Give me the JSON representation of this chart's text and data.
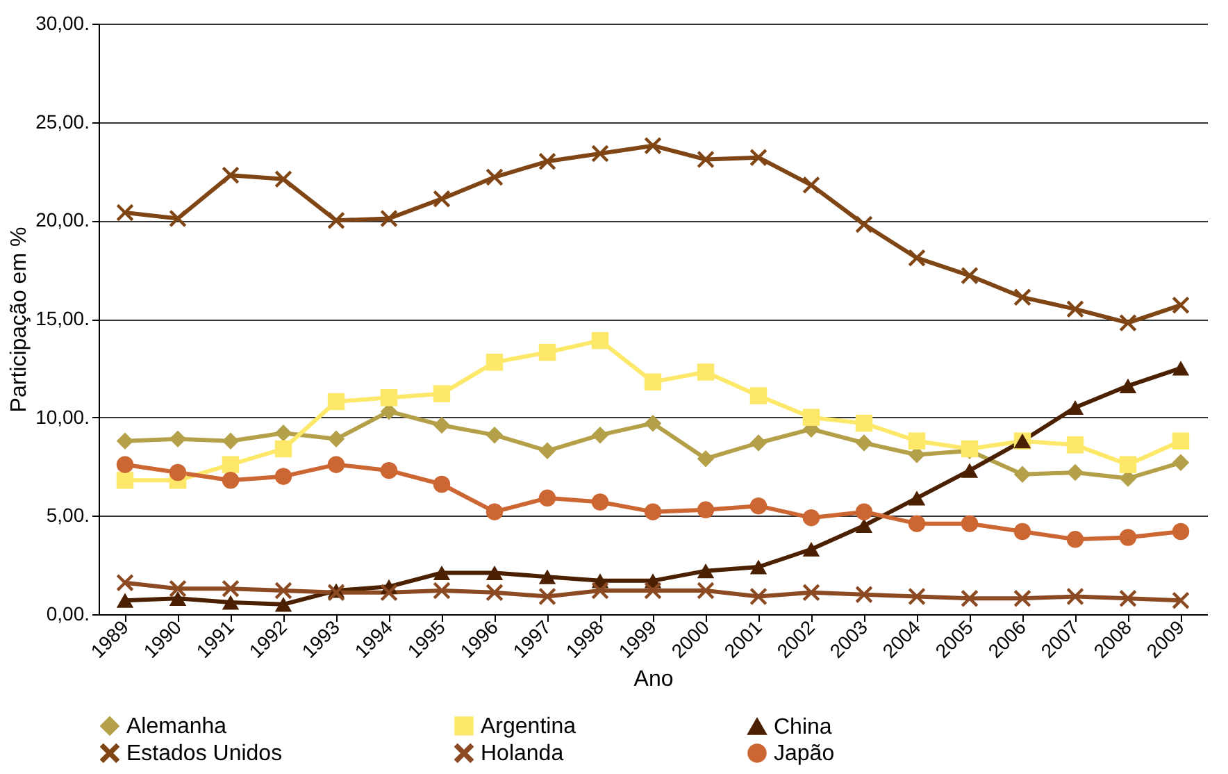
{
  "chart_data": {
    "type": "line",
    "xlabel": "Ano",
    "ylabel": "Participação em %",
    "categories": [
      "1989",
      "1990",
      "1991",
      "1992",
      "1993",
      "1994",
      "1995",
      "1996",
      "1997",
      "1998",
      "1999",
      "2000",
      "2001",
      "2002",
      "2003",
      "2004",
      "2005",
      "2006",
      "2007",
      "2008",
      "2009"
    ],
    "ylim": [
      0,
      30
    ],
    "yticks": [
      {
        "value": 0,
        "label": "0,00."
      },
      {
        "value": 5,
        "label": "5,00."
      },
      {
        "value": 10,
        "label": "10,00."
      },
      {
        "value": 15,
        "label": "15,00."
      },
      {
        "value": 20,
        "label": "20,00."
      },
      {
        "value": 25,
        "label": "25,00."
      },
      {
        "value": 30,
        "label": "30,00."
      }
    ],
    "grid": "y",
    "legend": "bottom",
    "line_style": "solid",
    "series": [
      {
        "name": "Alemanha",
        "color": "#b5a04a",
        "marker": "diamond",
        "values": [
          8.8,
          8.9,
          8.8,
          9.2,
          8.9,
          10.3,
          9.6,
          9.1,
          8.3,
          9.1,
          9.7,
          7.9,
          8.7,
          9.4,
          8.7,
          8.1,
          8.3,
          7.1,
          7.2,
          6.9,
          7.7
        ]
      },
      {
        "name": "Argentina",
        "color": "#fde86a",
        "marker": "square",
        "values": [
          6.8,
          6.8,
          7.6,
          8.4,
          10.8,
          11.0,
          11.2,
          12.8,
          13.3,
          13.9,
          11.8,
          12.3,
          11.1,
          10.0,
          9.7,
          8.8,
          8.4,
          8.8,
          8.6,
          7.6,
          8.8
        ]
      },
      {
        "name": "China",
        "color": "#4a2000",
        "marker": "triangle",
        "values": [
          0.7,
          0.8,
          0.6,
          0.5,
          1.2,
          1.4,
          2.1,
          2.1,
          1.9,
          1.7,
          1.7,
          2.2,
          2.4,
          3.3,
          4.5,
          5.9,
          7.3,
          8.8,
          10.5,
          11.6,
          12.5
        ]
      },
      {
        "name": "Estados Unidos",
        "color": "#7f4515",
        "marker": "cross",
        "values": [
          20.4,
          20.1,
          22.3,
          22.1,
          20.0,
          20.1,
          21.1,
          22.2,
          23.0,
          23.4,
          23.8,
          23.1,
          23.2,
          21.8,
          19.8,
          18.1,
          17.2,
          16.1,
          15.5,
          14.8,
          15.7
        ]
      },
      {
        "name": "Holanda",
        "color": "#8b4a22",
        "marker": "cross",
        "values": [
          1.6,
          1.3,
          1.3,
          1.2,
          1.1,
          1.1,
          1.2,
          1.1,
          0.9,
          1.2,
          1.2,
          1.2,
          0.9,
          1.1,
          1.0,
          0.9,
          0.8,
          0.8,
          0.9,
          0.8,
          0.7
        ]
      },
      {
        "name": "Japão",
        "color": "#cc6633",
        "marker": "circle",
        "values": [
          7.6,
          7.2,
          6.8,
          7.0,
          7.6,
          7.3,
          6.6,
          5.2,
          5.9,
          5.7,
          5.2,
          5.3,
          5.5,
          4.9,
          5.2,
          4.6,
          4.6,
          4.2,
          3.8,
          3.9,
          4.2
        ]
      }
    ]
  }
}
